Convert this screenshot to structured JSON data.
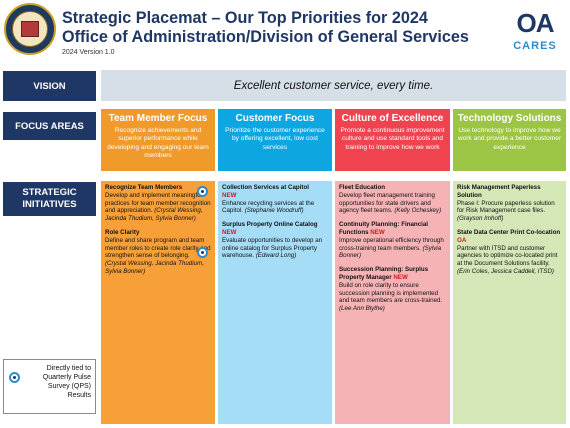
{
  "header": {
    "title_line1": "Strategic Placemat – Our Top Priorities for 2024",
    "title_line2": "Office of Administration/Division of General Services",
    "version": "2024 Version 1.0",
    "logo_letters": "OA",
    "logo_cares": "CARES"
  },
  "labels": {
    "vision": "VISION",
    "focus_areas": "FOCUS AREAS",
    "strategic_1": "STRATEGIC",
    "strategic_2": "INITIATIVES"
  },
  "vision": "Excellent customer service, every time.",
  "focus_areas": [
    {
      "title": "Team Member Focus",
      "text": "Recognize achievements and superior performance while developing and engaging our team members"
    },
    {
      "title": "Customer Focus",
      "text": "Prioritize the customer experience by offering excellent, low cost services"
    },
    {
      "title": "Culture of Excellence",
      "text": "Promote a continuous improvement culture and use standard tools and training to improve how we work"
    },
    {
      "title": "Technology Solutions",
      "text": "Use technology to improve how we work and provide a better customer experience"
    }
  ],
  "initiatives": {
    "team": [
      {
        "head": "Recognize Team Members",
        "text": "Develop and implement meaningful practices for team member recognition and appreciation. ",
        "who": "(Crystal Wessing, Jacinda Thudium, Sylvia Bonner)"
      },
      {
        "head": "Role Clarity",
        "text": "Define and share program and team member roles to create role clarity and strengthen sense of belonging. ",
        "who": "(Crystal Wessing, Jacinda Thudium, Sylvia Bonner)"
      }
    ],
    "customer": [
      {
        "head": "Collection Services at Capitol",
        "new": "NEW",
        "text": "Enhance recycling services at the Capitol. ",
        "who": "(Stephanie Woodruff)"
      },
      {
        "head": "Surplus Property Online Catalog",
        "new": "NEW",
        "text": "Evaluate opportunities to develop an online catalog for Surplus Property warehouse. ",
        "who": "(Edward Long)"
      }
    ],
    "culture": [
      {
        "head": "Fleet Education",
        "text": "Develop fleet management training opportunities for state drivers and agency fleet teams. ",
        "who": "(Kelly Ocheskey)"
      },
      {
        "head": "Continuity Planning: Financial Functions",
        "new": "NEW",
        "text": "Improve operational efficiency through cross-training team members. ",
        "who": "(Sylvia Bonner)"
      },
      {
        "head": "Succession Planning: Surplus Property Manager",
        "new": "NEW",
        "text": "Build on role clarity to ensure succession planning is implemented and team members are cross-trained. ",
        "who": "(Lee Ann Blythe)"
      }
    ],
    "tech": [
      {
        "head": "Risk Management Paperless Solution",
        "text": "Phase I: Procure paperless solution for Risk Management case files. ",
        "who": "(Grayson Imhoff)"
      },
      {
        "head": "State Data Center Print Co-location",
        "new": "OA",
        "text": "Partner with ITSD and customer agencies to optimize co-located print at the Document Solutions facility. ",
        "who": "(Erin Coles, Jessica Caddell, ITSD)"
      }
    ]
  },
  "legend": "Directly tied to Quarterly Pulse Survey (QPS) Results",
  "icons": {
    "seal": "state-seal-icon",
    "qps": "qps-survey-icon"
  },
  "colors": {
    "navy": "#1f3764",
    "team": "#ef9a2b",
    "customer": "#0ea6e0",
    "culture": "#ef4450",
    "tech": "#9cc445",
    "new": "#d21a1a"
  }
}
